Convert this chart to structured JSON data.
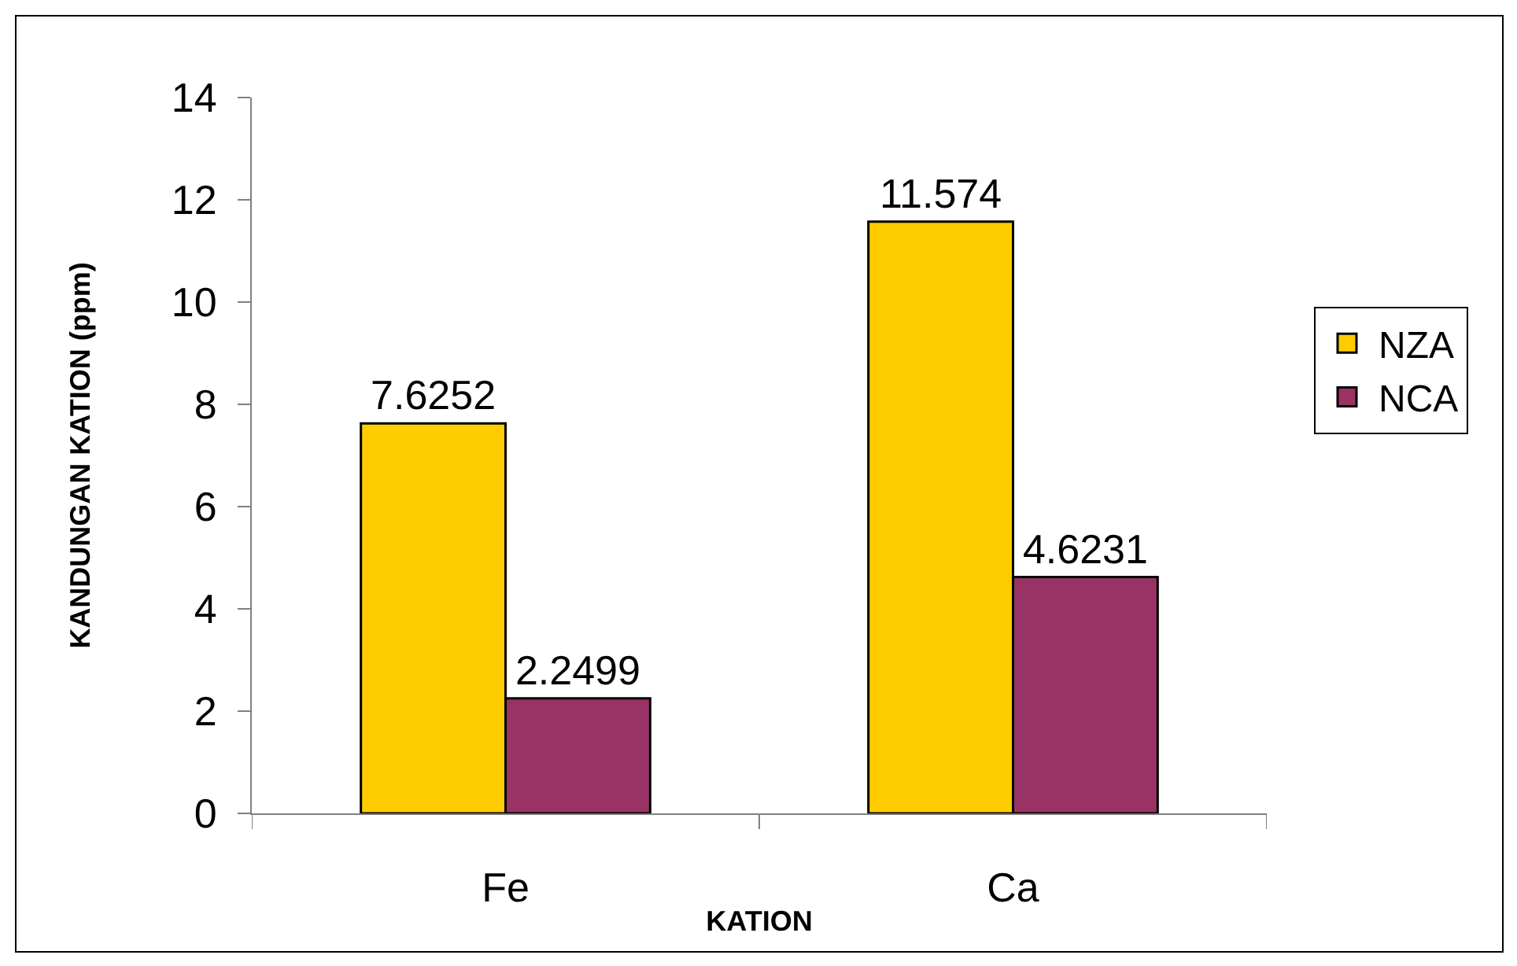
{
  "chart_data": {
    "type": "bar",
    "xlabel": "KATION",
    "ylabel": "KANDUNGAN KATION (ppm)",
    "categories": [
      "Fe",
      "Ca"
    ],
    "series": [
      {
        "name": "NZA",
        "color": "#ffcc00",
        "values": [
          7.6252,
          11.574
        ]
      },
      {
        "name": "NCA",
        "color": "#993366",
        "values": [
          2.2499,
          4.6231
        ]
      }
    ],
    "ylim": [
      0,
      14
    ],
    "yticks": [
      0,
      2,
      4,
      6,
      8,
      10,
      12,
      14
    ],
    "data_labels": true,
    "legend": "right"
  }
}
